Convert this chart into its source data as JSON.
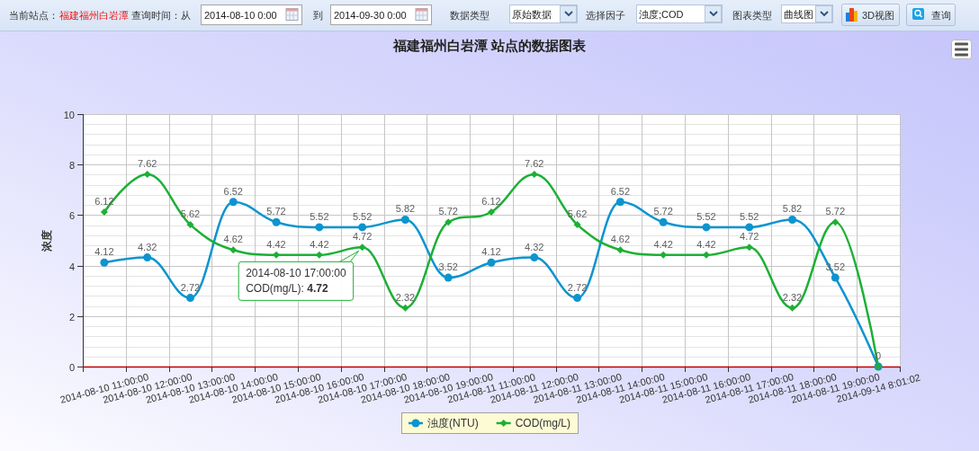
{
  "chart_data": {
    "type": "line",
    "title": "福建福州白岩潭 站点的数据图表",
    "ylabel": "浓度",
    "categories": [
      "2014-08-10 11:00:00",
      "2014-08-10 12:00:00",
      "2014-08-10 13:00:00",
      "2014-08-10 14:00:00",
      "2014-08-10 15:00:00",
      "2014-08-10 16:00:00",
      "2014-08-10 17:00:00",
      "2014-08-10 18:00:00",
      "2014-08-10 19:00:00",
      "2014-08-11 11:00:00",
      "2014-08-11 12:00:00",
      "2014-08-11 13:00:00",
      "2014-08-11 14:00:00",
      "2014-08-11 15:00:00",
      "2014-08-11 16:00:00",
      "2014-08-11 17:00:00",
      "2014-08-11 18:00:00",
      "2014-08-11 19:00:00",
      "2014-09-14 8:01:02"
    ],
    "series": [
      {
        "name": "浊度(NTU)",
        "color": "#0d94cf",
        "marker": "circle",
        "values": [
          4.12,
          4.32,
          2.72,
          6.52,
          5.72,
          5.52,
          5.52,
          5.82,
          3.52,
          4.12,
          4.32,
          2.72,
          6.52,
          5.72,
          5.52,
          5.52,
          5.82,
          3.52,
          0
        ],
        "value_labels": [
          "4.12",
          "4.32",
          "2.72",
          "6.52",
          "5.72",
          "5.52",
          "5.52",
          "5.82",
          "3.52",
          "4.12",
          "4.32",
          "2.72",
          "6.52",
          "5.72",
          "5.52",
          "5.52",
          "5.82",
          "3.52",
          null
        ]
      },
      {
        "name": "COD(mg/L)",
        "color": "#1cb035",
        "marker": "diamond",
        "values": [
          6.12,
          7.62,
          5.62,
          4.62,
          4.42,
          4.42,
          4.72,
          2.32,
          5.72,
          6.12,
          7.62,
          5.62,
          4.62,
          4.42,
          4.42,
          4.72,
          2.32,
          5.72,
          0
        ],
        "value_labels": [
          "6.12",
          "7.62",
          "5.62",
          "4.62",
          "4.42",
          "4.42",
          "4.72",
          "2.32",
          "5.72",
          "6.12",
          "7.62",
          "5.62",
          "4.62",
          "4.42",
          "4.42",
          "4.72",
          "2.32",
          "5.72",
          "0"
        ]
      }
    ],
    "ylim": [
      0,
      10
    ],
    "yticks": [
      0,
      2,
      4,
      6,
      8,
      10
    ],
    "grid": true,
    "legend": "bottom",
    "annotations": [
      "当前站点：",
      "福建福州白岩潭",
      "查询时间：从",
      "2014-08-10 0:00",
      "到",
      "2014-09-30 0:00",
      "数据类型",
      "原始数据",
      "选择因子",
      "浊度;COD",
      "图表类型",
      "曲线图",
      "3D视图",
      "查询",
      {
        "text": "2014-08-10 17:00:00\nCOD(mg/L): 4.72",
        "x": "2014-08-10 17:00:00",
        "y": 4.72
      }
    ]
  }
}
